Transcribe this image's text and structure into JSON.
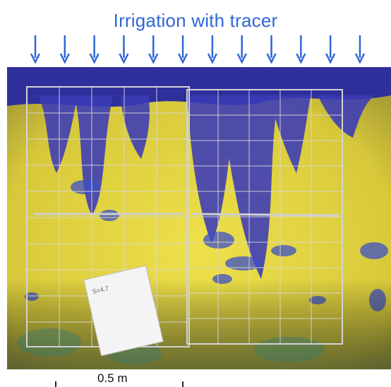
{
  "title": "Irrigation with tracer",
  "arrow_count": 12,
  "arrow_color": "#2f67d6",
  "scale_label": "0.5 m",
  "colors": {
    "stain_blue": "#3a3ab8",
    "soil_yellow": "#e3d43a",
    "frame_grey": "#c8c8c8"
  },
  "photo_content": {
    "card_text": "S=4.7"
  }
}
